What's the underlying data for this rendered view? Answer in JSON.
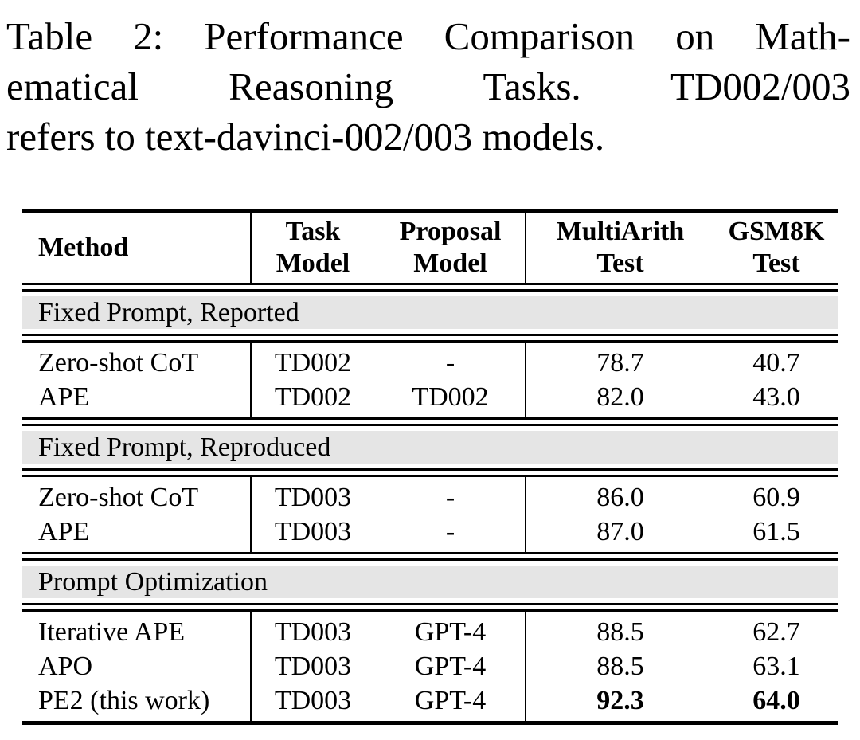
{
  "caption": {
    "lines": [
      "Table 2: Performance Comparison on Math-",
      "ematical Reasoning Tasks. TD002/003",
      "refers to text-davinci-002/003 models."
    ]
  },
  "table": {
    "header": [
      {
        "lines": [
          "Method"
        ]
      },
      {
        "lines": [
          "Task",
          "Model"
        ]
      },
      {
        "lines": [
          "Proposal",
          "Model"
        ]
      },
      {
        "lines": [
          "MultiArith",
          "Test"
        ]
      },
      {
        "lines": [
          "GSM8K",
          "Test"
        ]
      }
    ],
    "sections": [
      {
        "title": "Fixed Prompt, Reported",
        "rows": [
          {
            "cells": [
              "Zero-shot CoT",
              "TD002",
              "-",
              "78.7",
              "40.7"
            ]
          },
          {
            "cells": [
              "APE",
              "TD002",
              "TD002",
              "82.0",
              "43.0"
            ]
          }
        ]
      },
      {
        "title": "Fixed Prompt, Reproduced",
        "rows": [
          {
            "cells": [
              "Zero-shot CoT",
              "TD003",
              "-",
              "86.0",
              "60.9"
            ]
          },
          {
            "cells": [
              "APE",
              "TD003",
              "-",
              "87.0",
              "61.5"
            ]
          }
        ]
      },
      {
        "title": "Prompt Optimization",
        "rows": [
          {
            "cells": [
              "Iterative APE",
              "TD003",
              "GPT-4",
              "88.5",
              "62.7"
            ]
          },
          {
            "cells": [
              "APO",
              "TD003",
              "GPT-4",
              "88.5",
              "63.1"
            ]
          },
          {
            "cells": [
              "PE2 (this work)",
              "TD003",
              "GPT-4",
              "92.3",
              "64.0"
            ]
          }
        ]
      }
    ]
  },
  "colors": {
    "section_band": "#e5e5e5",
    "text": "#000000",
    "rules": "#000000"
  }
}
